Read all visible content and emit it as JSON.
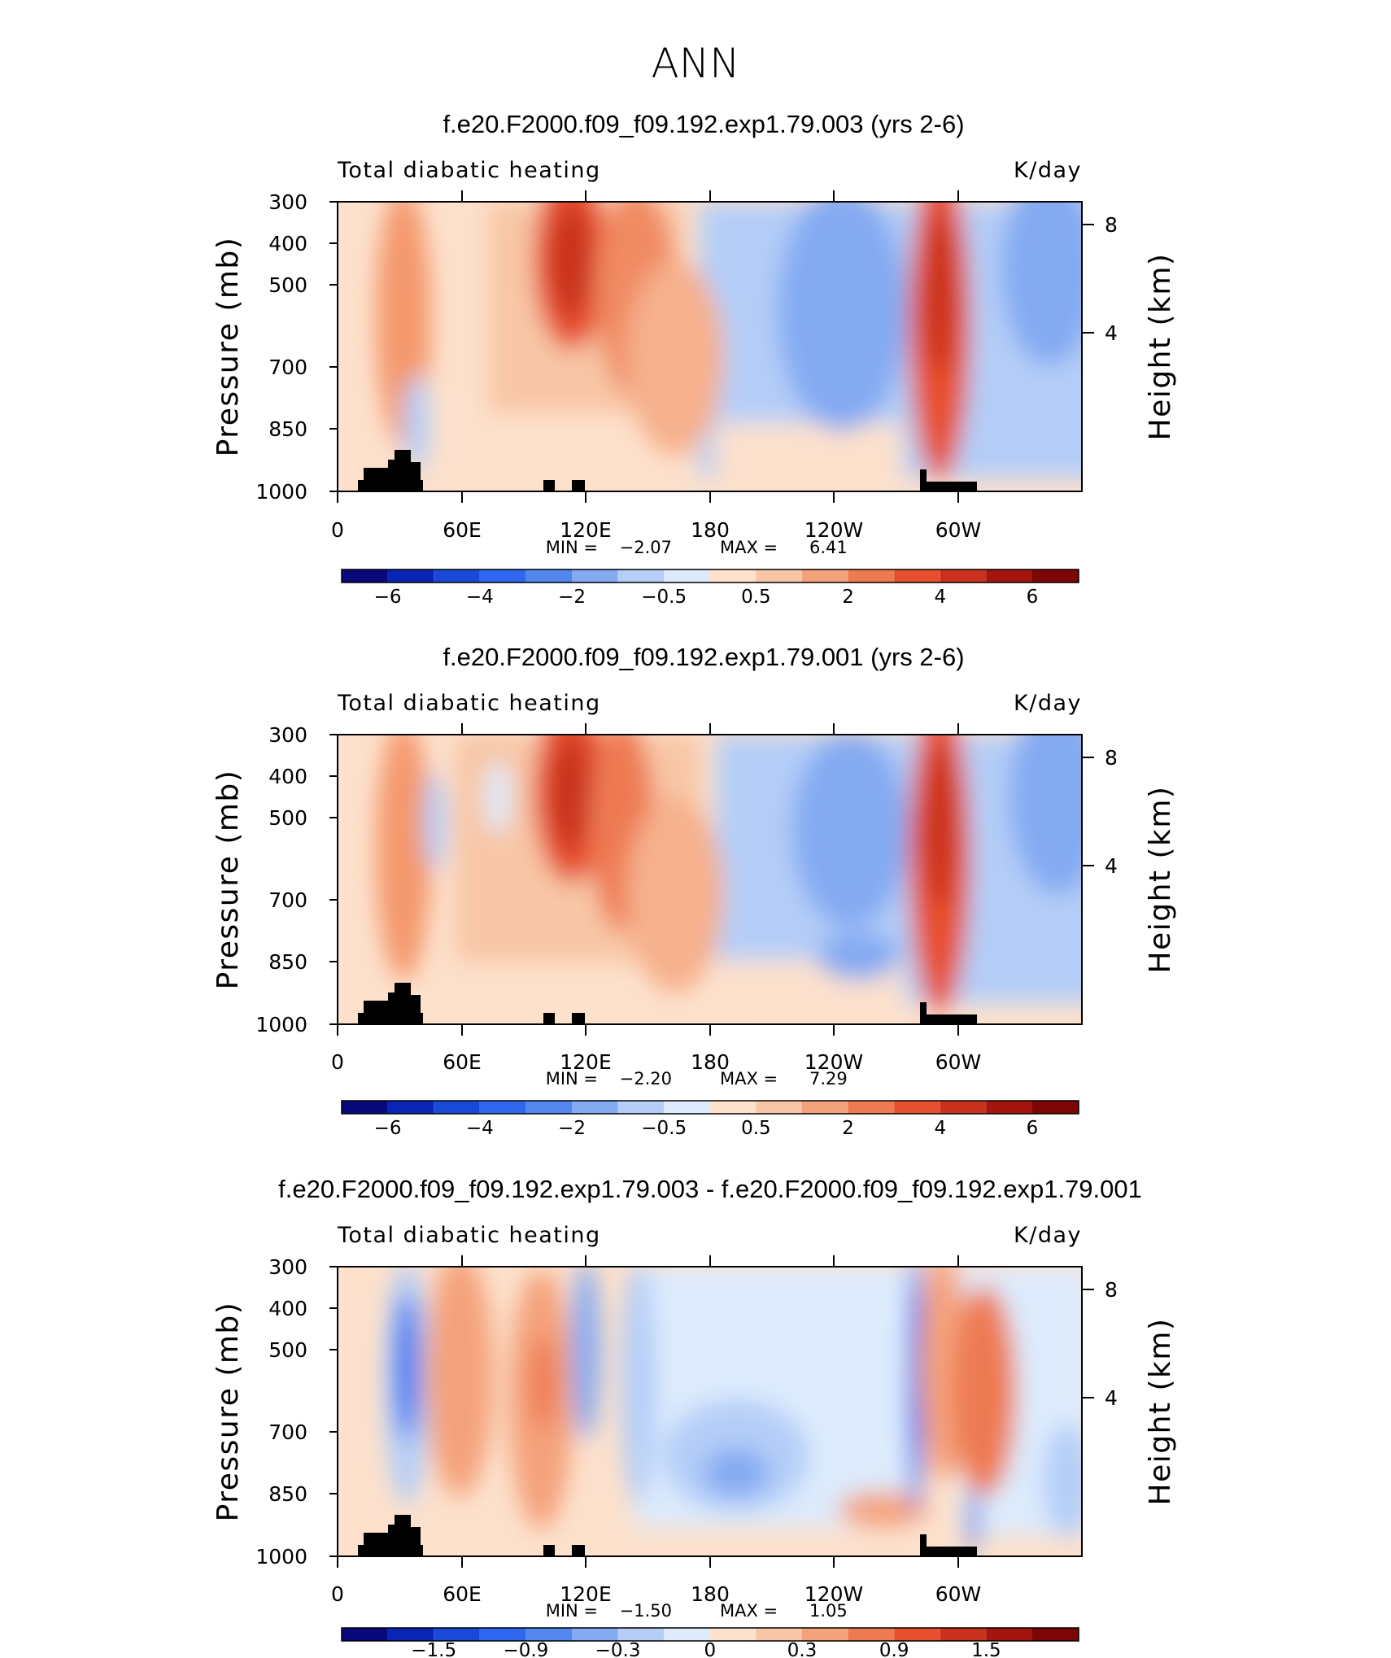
{
  "page": {
    "title": "ANN"
  },
  "chart_data": [
    {
      "type": "heatmap",
      "title": "f.e20.F2000.f09_f09.192.exp1.79.003 (yrs 2-6)",
      "subtitle_left": "Total diabatic heating",
      "subtitle_right": "K/day",
      "ylabel": "Pressure (mb)",
      "ylabel_right": "Height (km)",
      "yticks": [
        "300",
        "400",
        "500",
        "700",
        "850",
        "1000"
      ],
      "yticks_right": [
        "8",
        "4"
      ],
      "xticks": [
        "0",
        "60E",
        "120E",
        "180",
        "120W",
        "60W"
      ],
      "stats": {
        "min_label": "MIN =",
        "min": "−2.07",
        "max_label": "MAX =",
        "max": "6.41"
      },
      "colorbar": {
        "labels": [
          "−6",
          "−4",
          "−2",
          "−0.5",
          "0.5",
          "2",
          "4",
          "6"
        ]
      },
      "features": [
        {
          "lon": 35,
          "p": 550,
          "value": 3.5
        },
        {
          "lon": 110,
          "p": 430,
          "value": 5.0
        },
        {
          "lon": 138,
          "p": 520,
          "value": 3.0
        },
        {
          "lon": 160,
          "p": 650,
          "value": 1.5
        },
        {
          "lon": 240,
          "p": 550,
          "value": -1.5
        },
        {
          "lon": 288,
          "p": 500,
          "value": 5.0
        },
        {
          "lon": 330,
          "p": 500,
          "value": -1.5
        }
      ]
    },
    {
      "type": "heatmap",
      "title": "f.e20.F2000.f09_f09.192.exp1.79.001 (yrs 2-6)",
      "subtitle_left": "Total diabatic heating",
      "subtitle_right": "K/day",
      "ylabel": "Pressure (mb)",
      "ylabel_right": "Height (km)",
      "yticks": [
        "300",
        "400",
        "500",
        "700",
        "850",
        "1000"
      ],
      "yticks_right": [
        "8",
        "4"
      ],
      "xticks": [
        "0",
        "60E",
        "120E",
        "180",
        "120W",
        "60W"
      ],
      "stats": {
        "min_label": "MIN =",
        "min": "−2.20",
        "max_label": "MAX =",
        "max": "7.29"
      },
      "colorbar": {
        "labels": [
          "−6",
          "−4",
          "−2",
          "−0.5",
          "0.5",
          "2",
          "4",
          "6"
        ]
      },
      "features": [
        {
          "lon": 35,
          "p": 550,
          "value": 3.5
        },
        {
          "lon": 110,
          "p": 430,
          "value": 5.0
        },
        {
          "lon": 138,
          "p": 520,
          "value": 3.5
        },
        {
          "lon": 160,
          "p": 650,
          "value": 1.5
        },
        {
          "lon": 240,
          "p": 550,
          "value": -1.5
        },
        {
          "lon": 288,
          "p": 500,
          "value": 5.5
        },
        {
          "lon": 330,
          "p": 500,
          "value": -1.5
        }
      ]
    },
    {
      "type": "heatmap",
      "title": "f.e20.F2000.f09_f09.192.exp1.79.003 - f.e20.F2000.f09_f09.192.exp1.79.001",
      "subtitle_left": "Total diabatic heating",
      "subtitle_right": "K/day",
      "ylabel": "Pressure (mb)",
      "ylabel_right": "Height (km)",
      "yticks": [
        "300",
        "400",
        "500",
        "700",
        "850",
        "1000"
      ],
      "yticks_right": [
        "8",
        "4"
      ],
      "xticks": [
        "0",
        "60E",
        "120E",
        "180",
        "120W",
        "60W"
      ],
      "stats": {
        "min_label": "MIN =",
        "min": "−1.50",
        "max_label": "MAX =",
        "max": "1.05"
      },
      "colorbar": {
        "labels": [
          "−1.5",
          "−0.9",
          "−0.3",
          "0",
          "0.3",
          "0.9",
          "1.5"
        ]
      },
      "features": [
        {
          "lon": 35,
          "p": 500,
          "value": -1.2
        },
        {
          "lon": 60,
          "p": 550,
          "value": 0.6
        },
        {
          "lon": 100,
          "p": 550,
          "value": 0.8
        },
        {
          "lon": 125,
          "p": 600,
          "value": -0.4
        },
        {
          "lon": 200,
          "p": 700,
          "value": -0.4
        },
        {
          "lon": 280,
          "p": 550,
          "value": -1.2
        },
        {
          "lon": 310,
          "p": 600,
          "value": 0.7
        }
      ]
    }
  ]
}
